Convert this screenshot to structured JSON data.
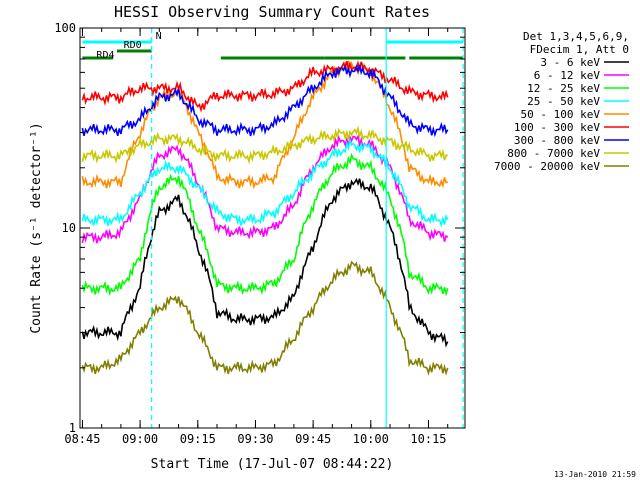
{
  "chart_data": {
    "type": "line",
    "title": "HESSI Observing Summary Count Rates",
    "xlabel": "Start Time (17-Jul-07 08:44:22)",
    "ylabel": "Count Rate (s⁻¹ detector⁻¹)",
    "yscale": "log",
    "ylim": [
      1,
      100
    ],
    "xlim": [
      "08:44:22",
      "10:24:30"
    ],
    "xticks": [
      "08:45",
      "09:00",
      "09:15",
      "09:30",
      "09:45",
      "10:00",
      "10:15"
    ],
    "yticks": [
      "1",
      "10",
      "100"
    ],
    "grid": false,
    "legend_position": "right",
    "legend_header": [
      "Det 1,3,4,5,6,9,",
      "FDecim 1, Att 0"
    ],
    "footer": "13-Jan-2010 21:59",
    "x": [
      "08:45",
      "08:50",
      "08:55",
      "09:00",
      "09:05",
      "09:10",
      "09:15",
      "09:20",
      "09:25",
      "09:30",
      "09:35",
      "09:40",
      "09:45",
      "09:50",
      "09:55",
      "10:00",
      "10:05",
      "10:10",
      "10:15",
      "10:20"
    ],
    "series": [
      {
        "name": "3 - 6 keV",
        "color": "#000000",
        "values": [
          3.0,
          3.0,
          3.0,
          5.0,
          12.0,
          14.0,
          8.0,
          3.8,
          3.5,
          3.5,
          3.6,
          4.5,
          8.0,
          14.0,
          17.0,
          16.0,
          10.0,
          4.0,
          3.0,
          2.7
        ]
      },
      {
        "name": "6 - 12 keV",
        "color": "#ff00ff",
        "values": [
          9.0,
          9.0,
          9.5,
          14.0,
          23.0,
          25.0,
          17.0,
          10.0,
          9.5,
          9.5,
          10.0,
          13.0,
          20.0,
          26.0,
          28.0,
          26.0,
          20.0,
          11.0,
          9.5,
          9.0
        ]
      },
      {
        "name": "12 - 25 keV",
        "color": "#00ff00",
        "values": [
          5.0,
          5.0,
          5.0,
          7.0,
          16.0,
          18.0,
          10.0,
          5.2,
          5.0,
          5.0,
          5.3,
          7.0,
          13.0,
          19.0,
          22.0,
          20.0,
          14.0,
          6.0,
          5.0,
          5.0
        ]
      },
      {
        "name": "25 - 50 keV",
        "color": "#00ffff",
        "values": [
          11.0,
          11.0,
          11.0,
          15.0,
          20.0,
          20.0,
          16.0,
          12.0,
          11.0,
          11.0,
          12.0,
          15.0,
          19.0,
          23.0,
          26.0,
          25.0,
          20.0,
          13.0,
          11.0,
          11.0
        ]
      },
      {
        "name": "50 - 100 keV",
        "color": "#ff8c00",
        "values": [
          17.0,
          17.0,
          17.0,
          30.0,
          45.0,
          48.0,
          30.0,
          18.0,
          17.0,
          17.0,
          18.0,
          28.0,
          45.0,
          60.0,
          65.0,
          60.0,
          40.0,
          20.0,
          17.0,
          17.0
        ]
      },
      {
        "name": "100 - 300 keV",
        "color": "#ff0000",
        "values": [
          45.0,
          45.0,
          45.0,
          50.0,
          50.0,
          50.0,
          40.0,
          46.0,
          46.0,
          46.0,
          47.0,
          50.0,
          60.0,
          62.0,
          65.0,
          62.0,
          55.0,
          48.0,
          46.0,
          45.0
        ]
      },
      {
        "name": "300 - 800 keV",
        "color": "#0000ff",
        "values": [
          31.0,
          31.0,
          31.0,
          35.0,
          45.0,
          47.0,
          35.0,
          31.0,
          31.0,
          31.0,
          33.0,
          40.0,
          50.0,
          60.0,
          62.0,
          60.0,
          45.0,
          33.0,
          31.0,
          31.0
        ]
      },
      {
        "name": "800 - 7000 keV",
        "color": "#c8c800",
        "values": [
          23.0,
          23.0,
          23.0,
          26.0,
          28.0,
          28.0,
          25.0,
          23.0,
          23.0,
          23.0,
          24.0,
          26.0,
          28.0,
          29.0,
          30.0,
          29.0,
          27.0,
          25.0,
          23.0,
          23.0
        ]
      },
      {
        "name": "7000 - 20000 keV",
        "color": "#808000",
        "values": [
          2.0,
          2.0,
          2.2,
          3.0,
          4.0,
          4.5,
          3.0,
          2.0,
          2.0,
          2.0,
          2.1,
          2.8,
          4.0,
          5.5,
          6.5,
          6.0,
          4.0,
          2.2,
          2.0,
          2.0
        ]
      }
    ],
    "annotations": [
      {
        "label": "N",
        "color": "#00ffff",
        "intervals": [
          [
            "08:45",
            "09:03"
          ],
          [
            "10:04",
            "10:24"
          ]
        ]
      },
      {
        "label": "RD0",
        "color": "#008000",
        "intervals": [
          [
            "08:54",
            "09:03"
          ]
        ]
      },
      {
        "label": "RD4",
        "color": "#008000",
        "intervals": [
          [
            "08:45",
            "08:53"
          ],
          [
            "09:21",
            "09:48"
          ],
          [
            "09:48",
            "10:09"
          ],
          [
            "10:10",
            "10:24"
          ]
        ]
      }
    ],
    "vlines": [
      {
        "time": "09:03",
        "color": "#00ffff",
        "style": "dashed"
      },
      {
        "time": "10:04",
        "color": "#00ffff",
        "style": "solid"
      },
      {
        "time": "10:24",
        "color": "#00ffff",
        "style": "dashed"
      }
    ]
  }
}
